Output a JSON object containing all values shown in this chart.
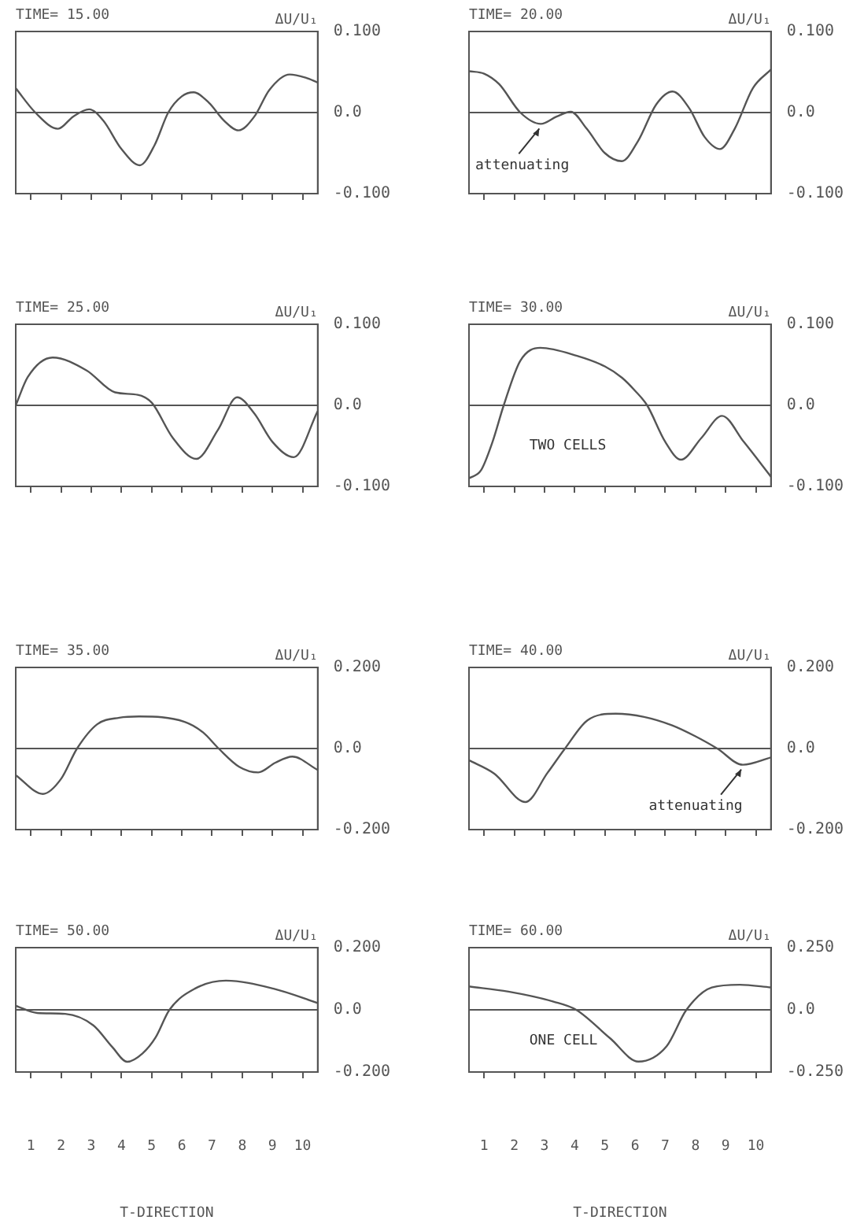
{
  "chart_data": [
    {
      "type": "line",
      "title": "TIME= 15.00",
      "ylabel": "ΔU/U₁",
      "color": "#555555",
      "x": [
        0.5,
        1.15,
        1.9,
        2.4,
        2.93,
        3.4,
        4.0,
        4.61,
        5.1,
        5.55,
        6.0,
        6.39,
        6.9,
        7.4,
        7.88,
        8.4,
        8.9,
        9.57,
        10.1,
        10.5
      ],
      "values": [
        0.03,
        0.0,
        -0.02,
        -0.005,
        0.004,
        -0.01,
        -0.045,
        -0.065,
        -0.04,
        0.0,
        0.02,
        0.025,
        0.012,
        -0.01,
        -0.022,
        -0.005,
        0.028,
        0.047,
        0.043,
        0.037
      ],
      "xlim": [
        0.5,
        10.5
      ],
      "xticks": [
        1,
        2,
        3,
        4,
        5,
        6,
        7,
        8,
        9,
        10
      ],
      "ylim": [
        -0.1,
        0.1
      ],
      "yticks": [
        {
          "value": -0.1,
          "label": "-0.100"
        },
        {
          "value": 0,
          "label": "0.0"
        },
        {
          "value": 0.1,
          "label": "0.100"
        }
      ],
      "ref_lines": [
        {
          "axis": "y",
          "value": 0,
          "color": "#555555"
        }
      ],
      "tick_labels": "y"
    },
    {
      "type": "line",
      "title": "TIME= 20.00",
      "ylabel": "ΔU/U₁",
      "color": "#555555",
      "x": [
        0.5,
        1.0,
        1.5,
        2.2,
        2.88,
        3.4,
        3.87,
        4.4,
        5.0,
        5.56,
        6.1,
        6.7,
        7.24,
        7.8,
        8.3,
        8.81,
        9.3,
        9.9,
        10.5
      ],
      "values": [
        0.051,
        0.048,
        0.035,
        0.0,
        -0.014,
        -0.005,
        0.001,
        -0.02,
        -0.05,
        -0.06,
        -0.035,
        0.01,
        0.026,
        0.005,
        -0.03,
        -0.045,
        -0.02,
        0.03,
        0.053
      ],
      "xlim": [
        0.5,
        10.5
      ],
      "xticks": [
        1,
        2,
        3,
        4,
        5,
        6,
        7,
        8,
        9,
        10
      ],
      "ylim": [
        -0.1,
        0.1
      ],
      "yticks": [
        {
          "value": -0.1,
          "label": "-0.100"
        },
        {
          "value": 0,
          "label": "0.0"
        },
        {
          "value": 0.1,
          "label": "0.100"
        }
      ],
      "ref_lines": [
        {
          "axis": "y",
          "value": 0,
          "color": "#555555"
        }
      ],
      "annotations": [
        {
          "text": "attenuating",
          "x": 2.88,
          "y": -0.014
        }
      ],
      "tick_labels": "y"
    },
    {
      "type": "line",
      "title": "TIME= 25.00",
      "ylabel": "ΔU/U₁",
      "color": "#555555",
      "x": [
        0.5,
        0.9,
        1.72,
        2.85,
        3.79,
        4.54,
        5.01,
        5.7,
        6.48,
        7.2,
        7.83,
        8.4,
        9.0,
        9.71,
        10.5
      ],
      "values": [
        0.0,
        0.035,
        0.059,
        0.043,
        0.016,
        0.013,
        0.003,
        -0.04,
        -0.066,
        -0.03,
        0.01,
        -0.01,
        -0.045,
        -0.064,
        -0.007
      ],
      "xlim": [
        0.5,
        10.5
      ],
      "xticks": [
        1,
        2,
        3,
        4,
        5,
        6,
        7,
        8,
        9,
        10
      ],
      "ylim": [
        -0.1,
        0.1
      ],
      "yticks": [
        {
          "value": -0.1,
          "label": "-0.100"
        },
        {
          "value": 0,
          "label": "0.0"
        },
        {
          "value": 0.1,
          "label": "0.100"
        }
      ],
      "ref_lines": [
        {
          "axis": "y",
          "value": 0,
          "color": "#555555"
        }
      ],
      "tick_labels": "y"
    },
    {
      "type": "line",
      "title": "TIME= 30.00",
      "ylabel": "ΔU/U₁",
      "color": "#555555",
      "x": [
        0.5,
        0.9,
        1.28,
        1.65,
        2.2,
        2.86,
        4.08,
        5.0,
        5.57,
        6.0,
        6.4,
        7.0,
        7.52,
        8.2,
        8.88,
        9.6,
        10.5
      ],
      "values": [
        -0.09,
        -0.08,
        -0.045,
        0.0,
        0.055,
        0.071,
        0.061,
        0.048,
        0.034,
        0.018,
        0.0,
        -0.045,
        -0.067,
        -0.04,
        -0.013,
        -0.045,
        -0.088
      ],
      "xlim": [
        0.5,
        10.5
      ],
      "xticks": [
        1,
        2,
        3,
        4,
        5,
        6,
        7,
        8,
        9,
        10
      ],
      "ylim": [
        -0.1,
        0.1
      ],
      "yticks": [
        {
          "value": -0.1,
          "label": "-0.100"
        },
        {
          "value": 0,
          "label": "0.0"
        },
        {
          "value": 0.1,
          "label": "0.100"
        }
      ],
      "ref_lines": [
        {
          "axis": "y",
          "value": 0,
          "color": "#555555"
        }
      ],
      "annotations": [
        "TWO CELLS"
      ],
      "tick_labels": "y"
    },
    {
      "type": "line",
      "title": "TIME= 35.00",
      "ylabel": "ΔU/U₁",
      "color": "#555555",
      "x": [
        0.5,
        1.4,
        2.0,
        2.53,
        3.2,
        3.93,
        4.59,
        6.09,
        6.7,
        7.22,
        7.9,
        8.53,
        9.1,
        9.66,
        10.5
      ],
      "values": [
        -0.066,
        -0.112,
        -0.075,
        0.0,
        0.06,
        0.076,
        0.079,
        0.066,
        0.04,
        0.0,
        -0.045,
        -0.059,
        -0.035,
        -0.02,
        -0.053
      ],
      "xlim": [
        0.5,
        10.5
      ],
      "xticks": [
        1,
        2,
        3,
        4,
        5,
        6,
        7,
        8,
        9,
        10
      ],
      "ylim": [
        -0.2,
        0.2
      ],
      "yticks": [
        {
          "value": -0.2,
          "label": "-0.200"
        },
        {
          "value": 0,
          "label": "0.0"
        },
        {
          "value": 0.2,
          "label": "0.200"
        }
      ],
      "ref_lines": [
        {
          "axis": "y",
          "value": 0,
          "color": "#555555"
        }
      ],
      "tick_labels": "y"
    },
    {
      "type": "line",
      "title": "TIME= 40.00",
      "ylabel": "ΔU/U₁",
      "color": "#555555",
      "x": [
        0.5,
        1.34,
        2.37,
        3.1,
        3.68,
        4.43,
        5.36,
        6.3,
        7.23,
        8.0,
        8.72,
        9.57,
        10.5
      ],
      "values": [
        -0.029,
        -0.062,
        -0.132,
        -0.06,
        0.0,
        0.07,
        0.086,
        0.078,
        0.057,
        0.03,
        0.0,
        -0.04,
        -0.022
      ],
      "xlim": [
        0.5,
        10.5
      ],
      "xticks": [
        1,
        2,
        3,
        4,
        5,
        6,
        7,
        8,
        9,
        10
      ],
      "ylim": [
        -0.2,
        0.2
      ],
      "yticks": [
        {
          "value": -0.2,
          "label": "-0.200"
        },
        {
          "value": 0,
          "label": "0.0"
        },
        {
          "value": 0.2,
          "label": "0.200"
        }
      ],
      "ref_lines": [
        {
          "axis": "y",
          "value": 0,
          "color": "#555555"
        }
      ],
      "annotations": [
        {
          "text": "attenuating",
          "x": 9.57,
          "y": -0.04
        }
      ],
      "tick_labels": "y"
    },
    {
      "type": "line",
      "title": "TIME= 50.00",
      "ylabel": "ΔU/U₁",
      "xlabel": "T-DIRECTION",
      "color": "#555555",
      "x": [
        0.5,
        1.21,
        2.14,
        3.07,
        3.7,
        4.19,
        4.7,
        5.13,
        5.59,
        6.43,
        7.46,
        9.04,
        10.5
      ],
      "values": [
        0.013,
        -0.01,
        -0.013,
        -0.05,
        -0.12,
        -0.167,
        -0.14,
        -0.089,
        0.0,
        0.068,
        0.094,
        0.068,
        0.022
      ],
      "xlim": [
        0.5,
        10.5
      ],
      "xticks": [
        1,
        2,
        3,
        4,
        5,
        6,
        7,
        8,
        9,
        10
      ],
      "ylim": [
        -0.2,
        0.2
      ],
      "yticks": [
        {
          "value": -0.2,
          "label": "-0.200"
        },
        {
          "value": 0,
          "label": "0.0"
        },
        {
          "value": 0.2,
          "label": "0.200"
        }
      ],
      "ref_lines": [
        {
          "axis": "y",
          "value": 0,
          "color": "#555555"
        }
      ]
    },
    {
      "type": "line",
      "title": "TIME= 60.00",
      "ylabel": "ΔU/U₁",
      "xlabel": "T-DIRECTION",
      "color": "#555555",
      "x": [
        0.5,
        1.81,
        3.3,
        4.05,
        5.17,
        6.11,
        7.04,
        7.7,
        8.54,
        9.47,
        10.5
      ],
      "values": [
        0.094,
        0.073,
        0.033,
        0.0,
        -0.114,
        -0.208,
        -0.147,
        0.0,
        0.09,
        0.101,
        0.09
      ],
      "xlim": [
        0.5,
        10.5
      ],
      "xticks": [
        1,
        2,
        3,
        4,
        5,
        6,
        7,
        8,
        9,
        10
      ],
      "ylim": [
        -0.25,
        0.25
      ],
      "yticks": [
        {
          "value": -0.25,
          "label": "-0.250"
        },
        {
          "value": 0,
          "label": "0.0"
        },
        {
          "value": 0.25,
          "label": "0.250"
        }
      ],
      "ref_lines": [
        {
          "axis": "y",
          "value": 0,
          "color": "#555555"
        }
      ],
      "annotations": [
        "ONE CELL"
      ]
    }
  ]
}
